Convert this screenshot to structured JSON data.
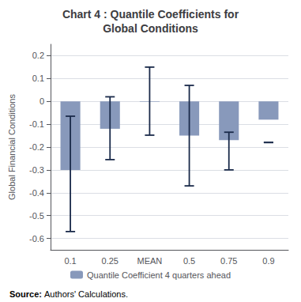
{
  "chart_data": {
    "type": "bar",
    "title": "Chart 4 : Quantile Coefficients for\nGlobal Conditions",
    "ylabel": "Global Financial Conditions",
    "categories": [
      "0.1",
      "0.25",
      "MEAN",
      "0.5",
      "0.75",
      "0.9"
    ],
    "series": [
      {
        "name": "Quantile Coefficient 4 quarters ahead",
        "color": "#8899bb",
        "values": [
          -0.3,
          -0.12,
          -0.002,
          -0.15,
          -0.17,
          -0.08
        ]
      }
    ],
    "error_bars": {
      "color": "#1a2a4a",
      "low": [
        -0.57,
        -0.255,
        -0.148,
        -0.37,
        -0.3,
        -0.18
      ],
      "high": [
        -0.065,
        0.02,
        0.15,
        0.07,
        -0.135,
        -0.18
      ]
    },
    "ylim": [
      -0.65,
      0.25
    ],
    "yticks": [
      -0.6,
      -0.5,
      -0.4,
      -0.3,
      -0.2,
      -0.1,
      0.0,
      0.1,
      0.2
    ],
    "grid": true,
    "legend": "bottom",
    "annotations": [
      "Source:",
      "Authors' Calculations."
    ]
  }
}
